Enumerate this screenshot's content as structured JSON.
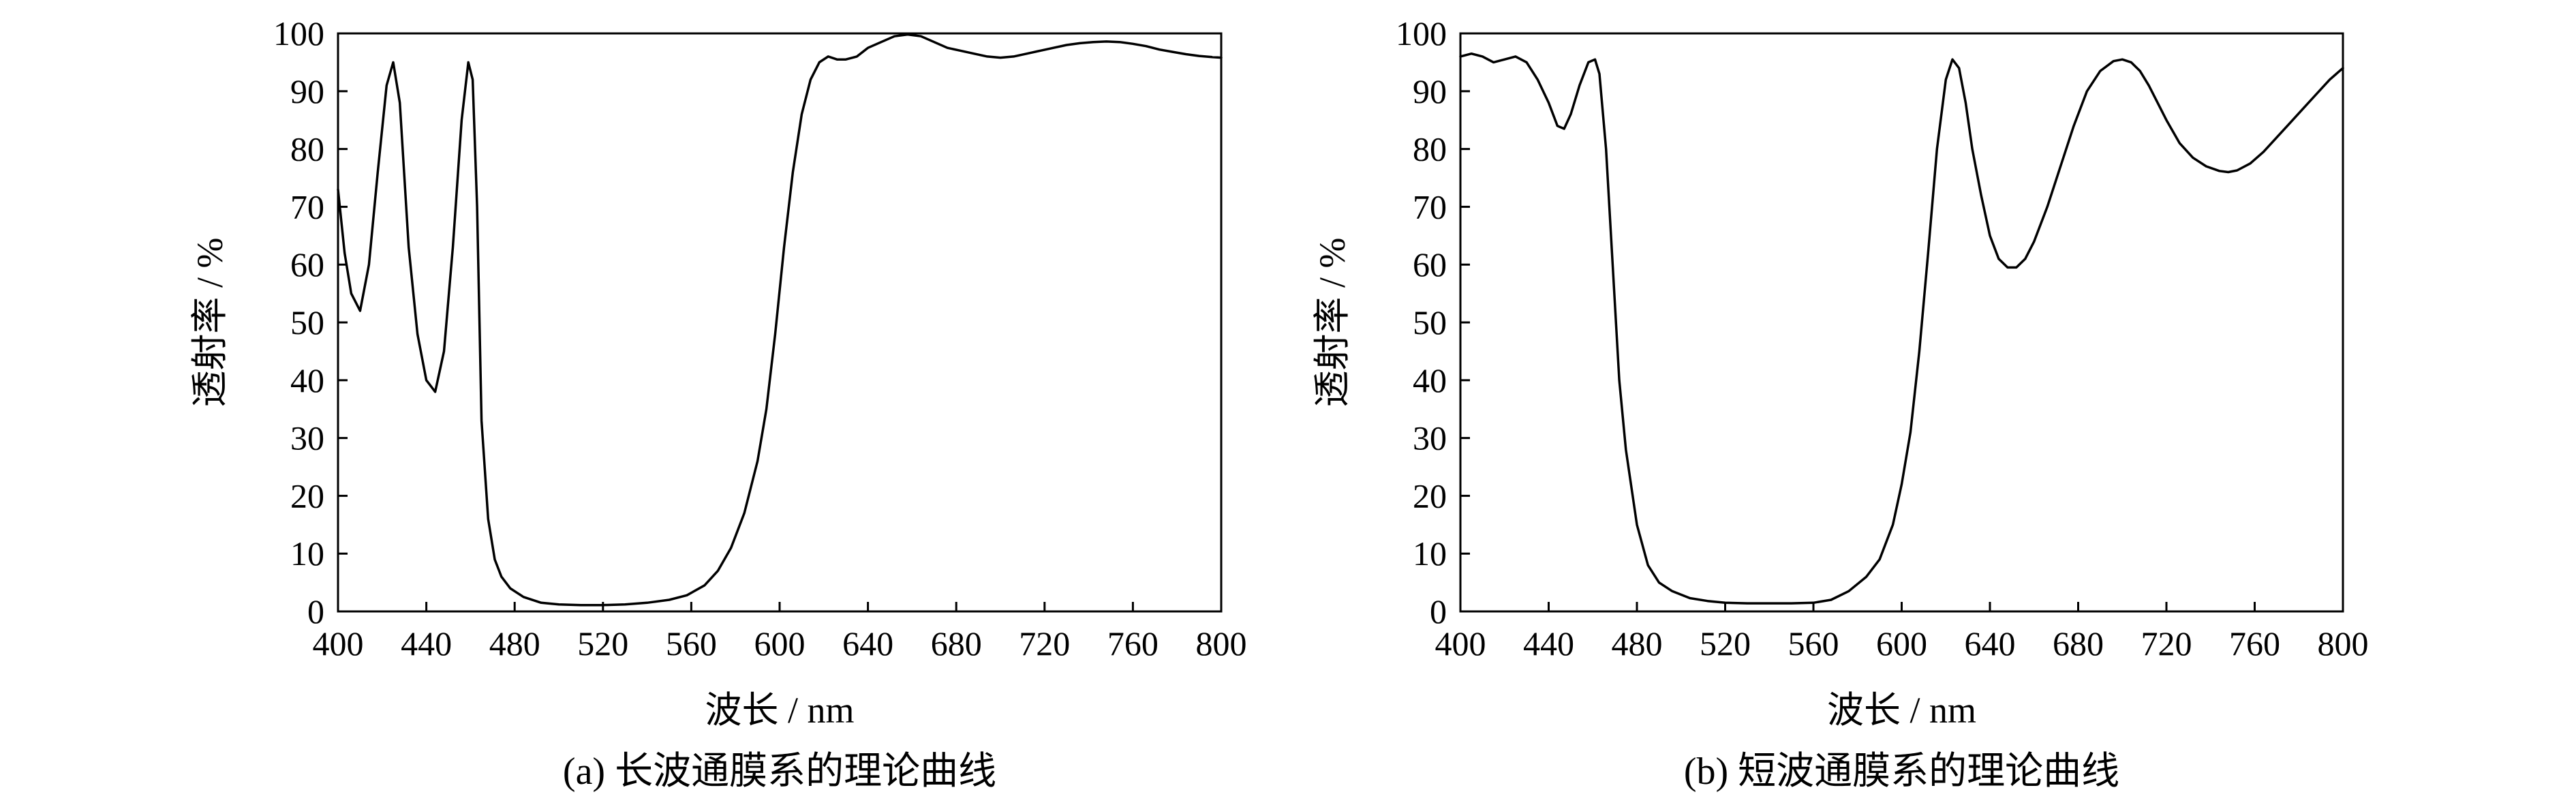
{
  "chart_data": [
    {
      "type": "line",
      "caption": "(a) 长波通膜系的理论曲线",
      "xlabel": "波长 / nm",
      "ylabel": "透射率 / %",
      "xlim": [
        400,
        800
      ],
      "ylim": [
        0,
        100
      ],
      "xticks": [
        "400",
        "440",
        "480",
        "520",
        "560",
        "600",
        "640",
        "680",
        "720",
        "760",
        "800"
      ],
      "yticks": [
        "0",
        "10",
        "20",
        "30",
        "40",
        "50",
        "60",
        "70",
        "80",
        "90",
        "100"
      ],
      "grid": false,
      "series": [
        {
          "color": "#000000",
          "x": [
            400,
            403,
            406,
            410,
            414,
            418,
            422,
            425,
            428,
            432,
            436,
            440,
            444,
            448,
            452,
            456,
            459,
            461,
            463,
            465,
            468,
            471,
            474,
            478,
            484,
            492,
            500,
            510,
            520,
            530,
            540,
            550,
            558,
            566,
            572,
            578,
            584,
            590,
            594,
            598,
            602,
            606,
            610,
            614,
            618,
            622,
            626,
            630,
            635,
            640,
            646,
            652,
            658,
            664,
            670,
            676,
            682,
            688,
            694,
            700,
            706,
            712,
            718,
            724,
            730,
            736,
            742,
            748,
            754,
            760,
            766,
            772,
            778,
            784,
            790,
            796,
            800
          ],
          "y": [
            73,
            62,
            55,
            52,
            60,
            76,
            91,
            95,
            88,
            63,
            48,
            40,
            38,
            45,
            63,
            85,
            95,
            92,
            70,
            33,
            16,
            9,
            6,
            4,
            2.5,
            1.5,
            1.2,
            1.1,
            1.1,
            1.2,
            1.5,
            2,
            2.8,
            4.5,
            7,
            11,
            17,
            26,
            35,
            48,
            63,
            76,
            86,
            92,
            95,
            96,
            95.5,
            95.5,
            96,
            97.5,
            98.5,
            99.5,
            99.8,
            99.5,
            98.5,
            97.5,
            97,
            96.5,
            96,
            95.8,
            96,
            96.5,
            97,
            97.5,
            98,
            98.3,
            98.5,
            98.6,
            98.5,
            98.2,
            97.8,
            97.2,
            96.8,
            96.4,
            96.1,
            95.9,
            95.8
          ]
        }
      ]
    },
    {
      "type": "line",
      "caption": "(b) 短波通膜系的理论曲线",
      "xlabel": "波长 / nm",
      "ylabel": "透射率 / %",
      "xlim": [
        400,
        800
      ],
      "ylim": [
        0,
        100
      ],
      "xticks": [
        "400",
        "440",
        "480",
        "520",
        "560",
        "600",
        "640",
        "680",
        "720",
        "760",
        "800"
      ],
      "yticks": [
        "0",
        "10",
        "20",
        "30",
        "40",
        "50",
        "60",
        "70",
        "80",
        "90",
        "100"
      ],
      "grid": false,
      "series": [
        {
          "color": "#000000",
          "x": [
            400,
            405,
            410,
            415,
            420,
            425,
            430,
            435,
            440,
            444,
            447,
            450,
            454,
            458,
            461,
            463,
            466,
            469,
            472,
            475,
            480,
            485,
            490,
            496,
            504,
            512,
            520,
            530,
            540,
            550,
            560,
            568,
            576,
            584,
            590,
            596,
            600,
            604,
            608,
            612,
            616,
            620,
            623,
            626,
            629,
            632,
            636,
            640,
            644,
            648,
            652,
            656,
            660,
            666,
            672,
            678,
            684,
            690,
            696,
            700,
            704,
            708,
            712,
            716,
            720,
            726,
            732,
            738,
            744,
            748,
            752,
            758,
            764,
            770,
            776,
            782,
            788,
            794,
            800
          ],
          "y": [
            96,
            96.5,
            96,
            95,
            95.5,
            96,
            95,
            92,
            88,
            84,
            83.5,
            86,
            91,
            95,
            95.5,
            93,
            80,
            60,
            40,
            28,
            15,
            8,
            5,
            3.5,
            2.3,
            1.8,
            1.5,
            1.4,
            1.4,
            1.4,
            1.5,
            2,
            3.5,
            6,
            9,
            15,
            22,
            31,
            45,
            62,
            80,
            92,
            95.5,
            94,
            88,
            80,
            72,
            65,
            61,
            59.5,
            59.5,
            61,
            64,
            70,
            77,
            84,
            90,
            93.5,
            95.2,
            95.5,
            95,
            93.5,
            91,
            88,
            85,
            81,
            78.5,
            77,
            76.2,
            76,
            76.3,
            77.5,
            79.5,
            82,
            84.5,
            87,
            89.5,
            92,
            94
          ]
        }
      ]
    }
  ]
}
